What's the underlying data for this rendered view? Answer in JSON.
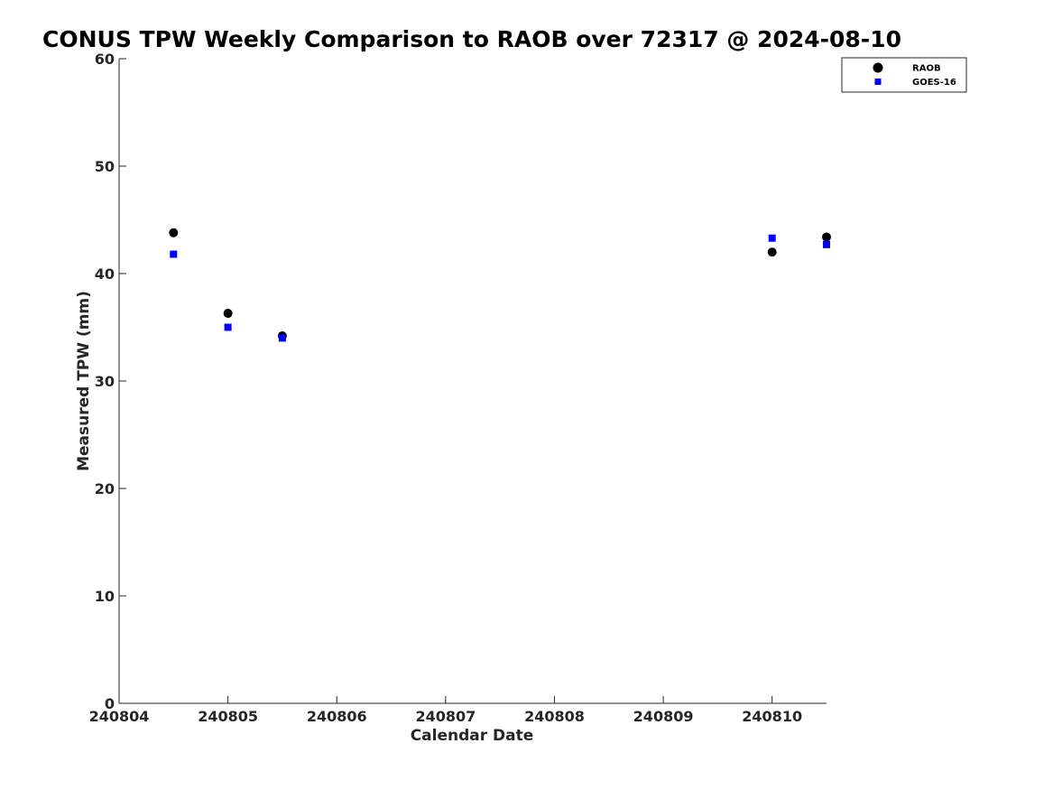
{
  "chart_data": {
    "type": "scatter",
    "title": "CONUS TPW Weekly Comparison to RAOB over 72317 @ 2024-08-10",
    "xlabel": "Calendar Date",
    "ylabel": "Measured TPW (mm)",
    "xlim": [
      240804,
      240810.5
    ],
    "ylim": [
      0,
      60
    ],
    "xticks": [
      240804,
      240805,
      240806,
      240807,
      240808,
      240809,
      240810
    ],
    "xtick_labels": [
      "240804",
      "240805",
      "240806",
      "240807",
      "240808",
      "240809",
      "240810"
    ],
    "yticks": [
      0,
      10,
      20,
      30,
      40,
      50,
      60
    ],
    "ytick_labels": [
      "0",
      "10",
      "20",
      "30",
      "40",
      "50",
      "60"
    ],
    "grid": false,
    "legend_position": "top-right",
    "series": [
      {
        "name": "RAOB",
        "marker": "circle",
        "color": "#000000",
        "x": [
          240804.5,
          240805,
          240805.5,
          240810,
          240810.5
        ],
        "y": [
          43.8,
          36.3,
          34.2,
          42.0,
          43.4
        ]
      },
      {
        "name": "GOES-16",
        "marker": "square",
        "color": "#0000ff",
        "x": [
          240804.5,
          240805,
          240805.5,
          240810,
          240810.5
        ],
        "y": [
          41.8,
          35.0,
          34.0,
          43.3,
          42.7
        ]
      }
    ]
  }
}
